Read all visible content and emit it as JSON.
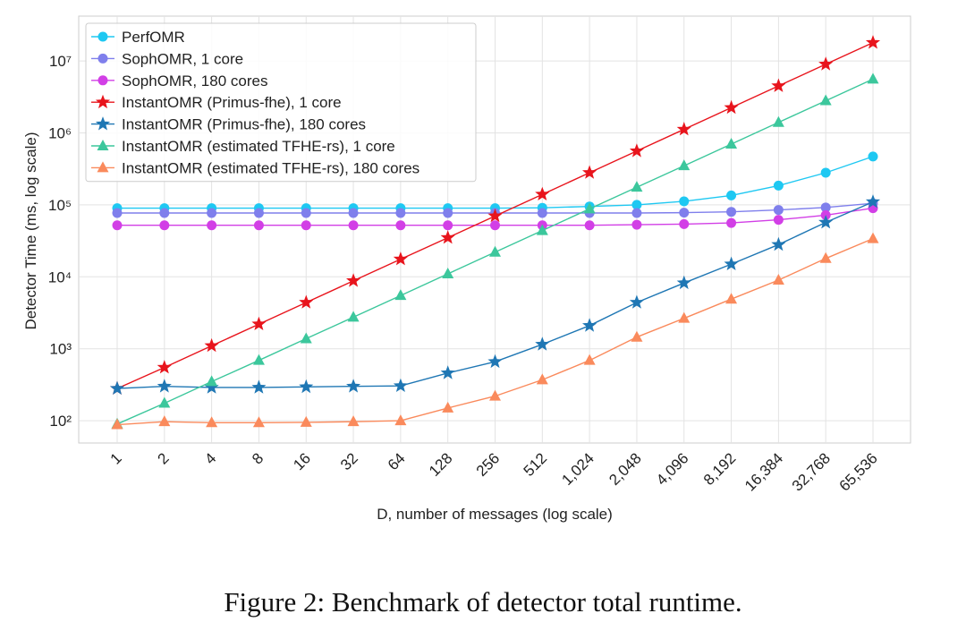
{
  "chart_data": {
    "type": "line",
    "xlabel": "D, number of messages (log scale)",
    "ylabel": "Detector Time (ms, log scale)",
    "caption": "Figure 2:  Benchmark of detector total runtime.",
    "categories": [
      "1",
      "2",
      "4",
      "8",
      "16",
      "32",
      "64",
      "128",
      "256",
      "512",
      "1,024",
      "2,048",
      "4,096",
      "8,192",
      "16,384",
      "32,768",
      "65,536"
    ],
    "yscale": "log",
    "ylim": [
      49,
      42000000
    ],
    "yticks": [
      {
        "value": 100,
        "label": "10²"
      },
      {
        "value": 1000,
        "label": "10³"
      },
      {
        "value": 10000,
        "label": "10⁴"
      },
      {
        "value": 100000,
        "label": "10⁵"
      },
      {
        "value": 1000000,
        "label": "10⁶"
      },
      {
        "value": 10000000,
        "label": "10⁷"
      }
    ],
    "grid": true,
    "legend": "upper left",
    "series": [
      {
        "name": "PerfOMR",
        "color": "#1ec8f2",
        "marker": "circle",
        "values": [
          90000,
          90000,
          90000,
          90000,
          90000,
          90000,
          90000,
          90000,
          90000,
          91000,
          95000,
          100000,
          112000,
          135000,
          185000,
          280000,
          470000
        ]
      },
      {
        "name": "SophOMR, 1 core",
        "color": "#7f7fec",
        "marker": "circle",
        "values": [
          77000,
          77000,
          77000,
          77000,
          77000,
          77000,
          77000,
          77000,
          77000,
          77000,
          77000,
          77000,
          78000,
          80000,
          85000,
          92000,
          105000
        ]
      },
      {
        "name": "SophOMR, 180 cores",
        "color": "#d23fe6",
        "marker": "circle",
        "values": [
          52000,
          52000,
          52000,
          52000,
          52000,
          52000,
          52000,
          52000,
          52000,
          52000,
          52000,
          53000,
          54000,
          56000,
          62000,
          72000,
          90000
        ]
      },
      {
        "name": "InstantOMR (Primus-fhe), 1 core",
        "color": "#e8141c",
        "marker": "star",
        "values": [
          280,
          550,
          1100,
          2200,
          4400,
          8800,
          17600,
          35000,
          70000,
          140000,
          280000,
          560000,
          1120000,
          2240000,
          4500000,
          9000000,
          18000000
        ]
      },
      {
        "name": "InstantOMR (Primus-fhe), 180 cores",
        "color": "#1f77b4",
        "marker": "star",
        "values": [
          280,
          300,
          290,
          290,
          295,
          300,
          305,
          460,
          660,
          1150,
          2100,
          4400,
          8200,
          15000,
          28000,
          57000,
          110000
        ]
      },
      {
        "name": "InstantOMR (estimated TFHE-rs), 1 core",
        "color": "#3cc79c",
        "marker": "triangle",
        "values": [
          90,
          175,
          350,
          690,
          1380,
          2750,
          5500,
          11000,
          22000,
          44000,
          88000,
          176000,
          350000,
          700000,
          1400000,
          2800000,
          5600000
        ]
      },
      {
        "name": "InstantOMR (estimated TFHE-rs), 180 cores",
        "color": "#fa8a5c",
        "marker": "triangle",
        "values": [
          88,
          97,
          94,
          94,
          95,
          97,
          100,
          150,
          220,
          370,
          690,
          1450,
          2650,
          4900,
          9000,
          18000,
          34000
        ]
      }
    ]
  }
}
